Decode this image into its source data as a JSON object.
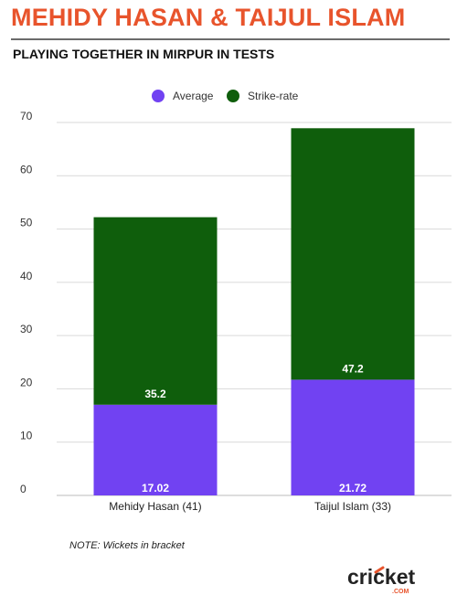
{
  "header": {
    "title": "MEHIDY HASAN & TAIJUL ISLAM",
    "subtitle": "PLAYING TOGETHER IN MIRPUR IN TESTS"
  },
  "note": "NOTE: Wickets in bracket",
  "logo": {
    "text": "cricket",
    "subtext": ".COM"
  },
  "colors": {
    "title": "#e8542c",
    "average": "#7142f2",
    "strike_rate": "#0f5e0c",
    "grid": "#d9d9d9"
  },
  "chart_data": {
    "type": "bar",
    "stacked": true,
    "categories": [
      "Mehidy Hasan (41)",
      "Taijul Islam (33)"
    ],
    "series": [
      {
        "name": "Average",
        "values": [
          17.02,
          21.72
        ],
        "labels": [
          "17.02",
          "21.72"
        ],
        "color": "#7142f2"
      },
      {
        "name": "Strike-rate",
        "values": [
          35.2,
          47.2
        ],
        "labels": [
          "35.2",
          "47.2"
        ],
        "color": "#0f5e0c"
      }
    ],
    "ylim": [
      0,
      70
    ],
    "yticks": [
      0,
      10,
      20,
      30,
      40,
      50,
      60,
      70
    ],
    "grid": true,
    "legend": "top-center",
    "xlabel": "",
    "ylabel": ""
  }
}
